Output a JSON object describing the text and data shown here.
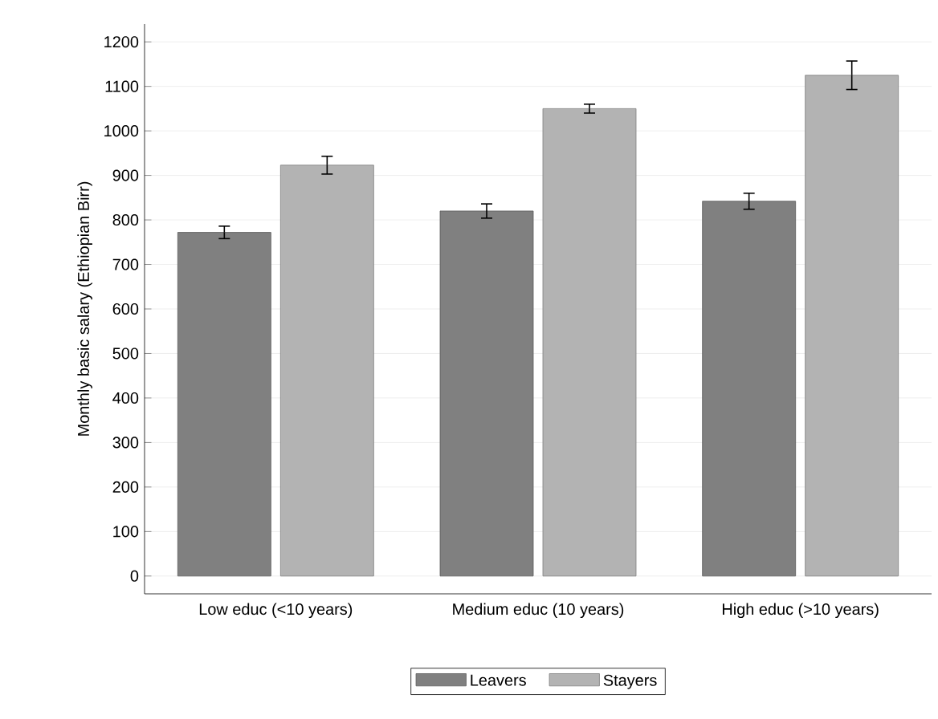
{
  "chart_data": {
    "type": "bar",
    "ylabel": "Monthly basic salary (Ethiopian Birr)",
    "categories": [
      "Low educ (<10 years)",
      "Medium educ (10 years)",
      "High educ (>10 years)"
    ],
    "series": [
      {
        "name": "Leavers",
        "color": "#808080",
        "values": [
          772,
          820,
          842
        ],
        "errors": [
          14,
          16,
          18
        ]
      },
      {
        "name": "Stayers",
        "color": "#b3b3b3",
        "values": [
          923,
          1050,
          1125
        ],
        "errors": [
          20,
          10,
          32
        ]
      }
    ],
    "ylim": [
      -40,
      1240
    ],
    "yticks": [
      0,
      100,
      200,
      300,
      400,
      500,
      600,
      700,
      800,
      900,
      1000,
      1100,
      1200
    ],
    "grid": "y",
    "legend": "bottom"
  }
}
